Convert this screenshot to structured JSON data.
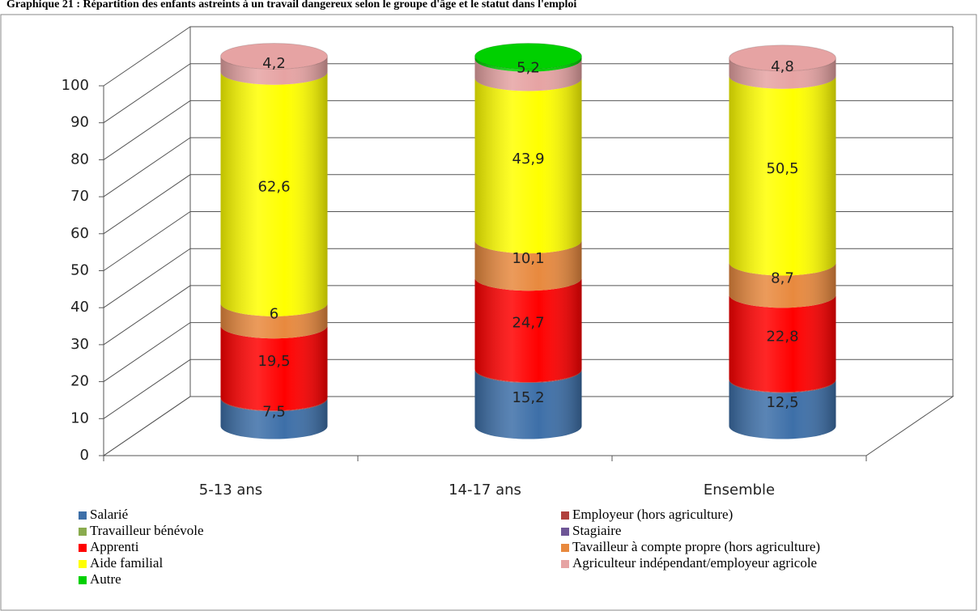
{
  "chart_data": {
    "type": "stacked-cylinder",
    "title": "Graphique 21 : Répartition des enfants astreints à un travail dangereux selon le groupe d'âge et le statut dans l'emploi",
    "categories": [
      "5-13 ans",
      "14-17 ans",
      "Ensemble"
    ],
    "ylim": [
      0,
      100
    ],
    "yticks": [
      0,
      10,
      20,
      30,
      40,
      50,
      60,
      70,
      80,
      90,
      100
    ],
    "grid": true,
    "series": [
      {
        "name": "Salarié",
        "color": "#3d6fa8",
        "values": [
          7.5,
          15.2,
          12.5
        ],
        "value_labels": [
          "7,5",
          "15,2",
          "12,5"
        ]
      },
      {
        "name": "Employeur (hors agriculture)",
        "color": "#b0403c",
        "values": [
          0.2,
          0.2,
          0.2
        ],
        "value_labels": [
          null,
          null,
          null
        ]
      },
      {
        "name": "Travailleur bénévole",
        "color": "#8aab4e",
        "values": [
          0,
          0,
          0
        ],
        "value_labels": [
          null,
          null,
          null
        ]
      },
      {
        "name": "Stagiaire",
        "color": "#6e5696",
        "values": [
          0,
          0,
          0
        ],
        "value_labels": [
          null,
          null,
          null
        ]
      },
      {
        "name": "Apprenti",
        "color": "#ff0000",
        "values": [
          19.5,
          24.7,
          22.8
        ],
        "value_labels": [
          "19,5",
          "24,7",
          "22,8"
        ]
      },
      {
        "name": "Tavailleur à compte propre (hors agriculture)",
        "color": "#e8893e",
        "values": [
          6,
          10.1,
          8.7
        ],
        "value_labels": [
          "6",
          "10,1",
          "8,7"
        ]
      },
      {
        "name": "Aide familial",
        "color": "#ffff00",
        "values": [
          62.6,
          43.9,
          50.5
        ],
        "value_labels": [
          "62,6",
          "43,9",
          "50,5"
        ]
      },
      {
        "name": "Agriculteur indépendant/employeur agricole",
        "color": "#e6a3a3",
        "values": [
          4.2,
          5.2,
          4.8
        ],
        "value_labels": [
          "4,2",
          "5,2",
          "4,8"
        ]
      },
      {
        "name": "Autre",
        "color": "#00d000",
        "values": [
          0,
          0.7,
          0
        ],
        "value_labels": [
          null,
          null,
          null
        ]
      }
    ]
  }
}
